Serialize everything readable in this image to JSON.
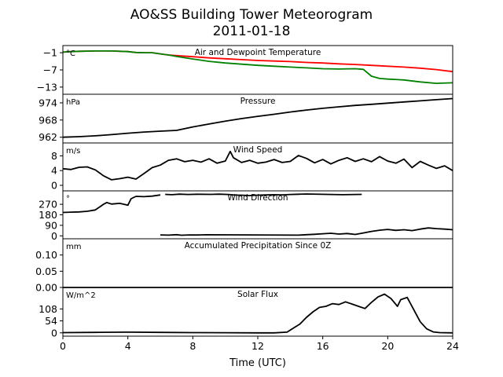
{
  "chart_data": {
    "type": "line",
    "title": "AO&SS Building Tower Meteorogram",
    "subtitle": "2011-01-18",
    "xlabel": "Time (UTC)",
    "xlim": [
      0,
      24
    ],
    "xticks": [
      0,
      4,
      8,
      12,
      16,
      20,
      24
    ],
    "panels": [
      {
        "title": "Air and Dewpoint Temperature",
        "unit": "°C",
        "ylim": [
          -15.5,
          1.5
        ],
        "yticks": [
          -1,
          -7,
          -13
        ],
        "series": [
          {
            "color": "#ff0000",
            "x": [
              0,
              0.5,
              1,
              2,
              3,
              4,
              4.5,
              5,
              5.5,
              6,
              6.5,
              7,
              8,
              9,
              10,
              11,
              12,
              13,
              14,
              15,
              16,
              17,
              18,
              19,
              20,
              21,
              22,
              23,
              24
            ],
            "values": [
              -0.8,
              -0.6,
              -0.5,
              -0.4,
              -0.4,
              -0.6,
              -0.9,
              -1.0,
              -1.0,
              -1.4,
              -1.8,
              -2.0,
              -2.4,
              -2.8,
              -3.1,
              -3.4,
              -3.7,
              -3.9,
              -4.1,
              -4.4,
              -4.6,
              -4.9,
              -5.1,
              -5.4,
              -5.7,
              -6.0,
              -6.4,
              -6.9,
              -7.6
            ]
          },
          {
            "color": "#008000",
            "x": [
              0,
              0.5,
              1,
              2,
              3,
              4,
              4.5,
              5,
              5.5,
              6,
              6.5,
              7,
              8,
              9,
              10,
              11,
              12,
              13,
              14,
              15,
              16,
              17,
              18,
              18.5,
              19,
              19.5,
              20,
              21,
              22,
              23,
              24
            ],
            "values": [
              -0.8,
              -0.6,
              -0.5,
              -0.4,
              -0.4,
              -0.6,
              -0.9,
              -1.0,
              -1.0,
              -1.4,
              -1.8,
              -2.3,
              -3.2,
              -4.0,
              -4.6,
              -5.0,
              -5.4,
              -5.7,
              -6.0,
              -6.3,
              -6.6,
              -6.7,
              -6.6,
              -6.8,
              -9.2,
              -10.0,
              -10.2,
              -10.5,
              -11.2,
              -11.7,
              -11.5
            ]
          }
        ]
      },
      {
        "title": "Pressure",
        "unit": "hPa",
        "ylim": [
          960,
          977
        ],
        "yticks": [
          962,
          968,
          974
        ],
        "series": [
          {
            "color": "#000000",
            "x": [
              0,
              1,
              2,
              3,
              4,
              5,
              6,
              7,
              8,
              9,
              10,
              11,
              12,
              13,
              14,
              15,
              16,
              17,
              18,
              19,
              20,
              21,
              22,
              23,
              24
            ],
            "values": [
              962.0,
              962.2,
              962.5,
              962.9,
              963.4,
              963.8,
              964.1,
              964.4,
              965.6,
              966.6,
              967.6,
              968.5,
              969.3,
              970.0,
              970.8,
              971.5,
              972.1,
              972.6,
              973.1,
              973.5,
              973.9,
              974.3,
              974.7,
              975.1,
              975.5
            ]
          }
        ]
      },
      {
        "title": "Wind Speed",
        "unit": "m/s",
        "ylim": [
          -1.5,
          11.5
        ],
        "yticks": [
          0,
          4,
          8
        ],
        "series": [
          {
            "color": "#000000",
            "x": [
              0,
              0.5,
              1,
              1.5,
              2,
              2.5,
              3,
              3.5,
              4,
              4.5,
              5,
              5.5,
              6,
              6.5,
              7,
              7.5,
              8,
              8.5,
              9,
              9.5,
              10,
              10.3,
              10.5,
              11,
              11.5,
              12,
              12.5,
              13,
              13.5,
              14,
              14.5,
              15,
              15.5,
              16,
              16.5,
              17,
              17.5,
              18,
              18.5,
              19,
              19.5,
              20,
              20.5,
              21,
              21.5,
              22,
              22.5,
              23,
              23.5,
              24
            ],
            "values": [
              4.5,
              4.3,
              4.9,
              5.0,
              4.2,
              2.6,
              1.5,
              1.8,
              2.2,
              1.7,
              3.2,
              4.8,
              5.5,
              6.8,
              7.2,
              6.4,
              6.8,
              6.3,
              7.2,
              6.0,
              6.6,
              9.2,
              7.5,
              6.2,
              6.8,
              6.0,
              6.3,
              7.0,
              6.2,
              6.5,
              8.1,
              7.3,
              6.1,
              7.0,
              5.8,
              6.8,
              7.5,
              6.5,
              7.2,
              6.4,
              7.8,
              6.6,
              6.0,
              7.1,
              4.8,
              6.5,
              5.5,
              4.6,
              5.3,
              4.0
            ]
          }
        ]
      },
      {
        "title": "Wind Direction",
        "unit": "°",
        "ylim": [
          -25,
          385
        ],
        "yticks": [
          0,
          90,
          180,
          270
        ],
        "series": [
          {
            "color": "#000000",
            "x": [
              0,
              0.5,
              1,
              1.5,
              2,
              2.5,
              2.7,
              3,
              3.5,
              4,
              4.2,
              4.5,
              5,
              5.5,
              6
            ],
            "values": [
              200,
              203,
              205,
              210,
              222,
              270,
              285,
              272,
              278,
              262,
              318,
              338,
              335,
              340,
              350
            ]
          },
          {
            "color": "#000000",
            "x": [
              6.3,
              6.7,
              7.2,
              7.7,
              8.3,
              9.1,
              9.6,
              10.2,
              10.6,
              11,
              11.5,
              12,
              12.5,
              13,
              13.5,
              14,
              14.5,
              15,
              17.2,
              18.4
            ],
            "values": [
              355,
              352,
              357,
              354,
              356,
              355,
              357,
              354,
              349,
              348,
              345,
              348,
              350,
              352,
              351,
              354,
              356,
              358,
              352,
              355
            ]
          },
          {
            "color": "#000000",
            "x": [
              6,
              6.5,
              7,
              7.3,
              7.8,
              8.3,
              8.8,
              14.5,
              15,
              15.5,
              16,
              16.5,
              17,
              17.5,
              18,
              18.5,
              19,
              19.5,
              20,
              20.5,
              21,
              21.5,
              22,
              22.5,
              23,
              23.5,
              24
            ],
            "values": [
              8,
              6,
              10,
              5,
              8,
              7,
              9,
              6,
              10,
              13,
              18,
              22,
              15,
              20,
              12,
              25,
              38,
              48,
              55,
              47,
              52,
              45,
              58,
              68,
              62,
              58,
              52
            ]
          }
        ]
      },
      {
        "title": "Accumulated Precipitation Since 0Z",
        "unit": "mm",
        "ylim": [
          0,
          0.15
        ],
        "yticks": [
          0.0,
          0.05,
          0.1
        ],
        "series": [
          {
            "color": "#000000",
            "x": [
              0,
              24
            ],
            "values": [
              0,
              0
            ]
          }
        ]
      },
      {
        "title": "Solar Flux",
        "unit": "W/m^2",
        "ylim": [
          -15,
          205
        ],
        "yticks": [
          0,
          54,
          108
        ],
        "series": [
          {
            "color": "#000000",
            "x": [
              0,
              2,
              4,
              6,
              8,
              10,
              12,
              13,
              13.8,
              14.2,
              14.6,
              15,
              15.4,
              15.8,
              16.2,
              16.6,
              17,
              17.4,
              17.8,
              18.2,
              18.6,
              19,
              19.4,
              19.8,
              20.2,
              20.6,
              20.8,
              21.2,
              21.6,
              22,
              22.4,
              22.8,
              23.2,
              24
            ],
            "values": [
              1,
              2,
              3,
              2,
              1,
              0.5,
              0,
              0,
              3,
              22,
              40,
              70,
              95,
              115,
              120,
              132,
              128,
              140,
              130,
              120,
              110,
              138,
              162,
              175,
              155,
              120,
              150,
              160,
              105,
              50,
              18,
              4,
              1,
              0
            ]
          }
        ]
      }
    ]
  }
}
